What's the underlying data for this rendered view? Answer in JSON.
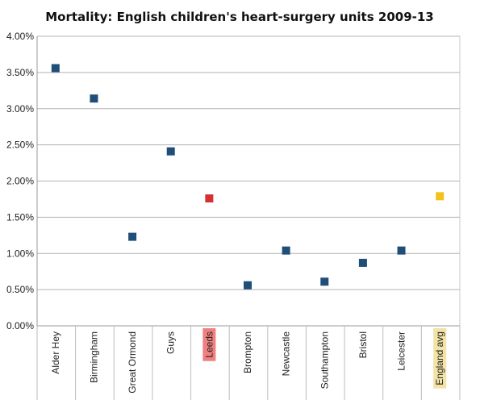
{
  "chart_data": {
    "type": "scatter",
    "title": "Mortality: English children's heart-surgery units 2009-13",
    "xlabel": "",
    "ylabel": "",
    "ylim": [
      0,
      4.0
    ],
    "y_unit": "%",
    "grid": true,
    "legend": "none",
    "yticks": [
      "0.00%",
      "0.50%",
      "1.00%",
      "1.50%",
      "2.00%",
      "2.50%",
      "3.00%",
      "3.50%",
      "4.00%"
    ],
    "categories": [
      "Alder Hey",
      "Birmingham",
      "Great Ormond",
      "Guys",
      "Leeds",
      "Brompton",
      "Newcastle",
      "Southampton",
      "Bristol",
      "Leicester",
      "England avg"
    ],
    "values": [
      3.56,
      3.14,
      1.23,
      2.41,
      1.76,
      0.56,
      1.04,
      0.61,
      0.87,
      1.04,
      1.79
    ],
    "point_colors": [
      "#1f4e79",
      "#1f4e79",
      "#1f4e79",
      "#1f4e79",
      "#d63030",
      "#1f4e79",
      "#1f4e79",
      "#1f4e79",
      "#1f4e79",
      "#1f4e79",
      "#f2c21c"
    ],
    "label_highlights": [
      "",
      "",
      "",
      "",
      "#f08080",
      "",
      "",
      "",
      "",
      "",
      "#f2e3a6"
    ]
  }
}
